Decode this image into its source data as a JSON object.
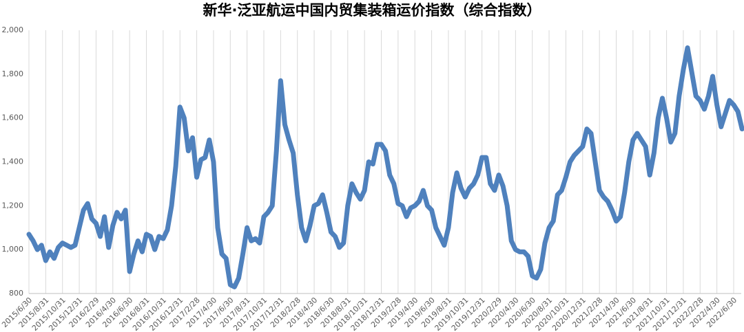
{
  "chart_data": {
    "type": "line",
    "title": "新华·泛亚航运中国内贸集装箱运价指数（综合指数）",
    "color": "#4f81bd",
    "grid": true,
    "ylim": [
      800,
      2000
    ],
    "yticks": [
      800,
      {
        "value": 1000,
        "label": "1,000"
      },
      {
        "value": 1200,
        "label": "1,200"
      },
      {
        "value": 1400,
        "label": "1,400"
      },
      {
        "value": 1600,
        "label": "1,600"
      },
      {
        "value": 1800,
        "label": "1,800"
      },
      {
        "value": 2000,
        "label": "2,000"
      }
    ],
    "categories": [
      "2015/6/30",
      null,
      null,
      null,
      "2015/8/31",
      null,
      null,
      null,
      "2015/10/31",
      null,
      null,
      null,
      "2015/12/31",
      null,
      null,
      null,
      "2016/2/29",
      null,
      null,
      null,
      "2016/4/30",
      null,
      null,
      null,
      "2016/6/30",
      null,
      null,
      null,
      "2016/8/31",
      null,
      null,
      null,
      "2016/10/31",
      null,
      null,
      null,
      "2016/12/31",
      null,
      null,
      null,
      "2017/2/28",
      null,
      null,
      null,
      "2017/4/30",
      null,
      null,
      null,
      "2017/6/30",
      null,
      null,
      null,
      "2017/8/31",
      null,
      null,
      null,
      "2017/10/31",
      null,
      null,
      null,
      "2017/12/31",
      null,
      null,
      null,
      "2018/2/28",
      null,
      null,
      null,
      "2018/4/30",
      null,
      null,
      null,
      "2018/6/30",
      null,
      null,
      null,
      "2018/8/31",
      null,
      null,
      null,
      "2018/10/31",
      null,
      null,
      null,
      "2018/12/31",
      null,
      null,
      null,
      "2019/2/28",
      null,
      null,
      null,
      "2019/4/30",
      null,
      null,
      null,
      "2019/6/30",
      null,
      null,
      null,
      "2019/8/31",
      null,
      null,
      null,
      "2019/10/31",
      null,
      null,
      null,
      "2019/12/31",
      null,
      null,
      null,
      "2020/2/29",
      null,
      null,
      null,
      "2020/4/30",
      null,
      null,
      null,
      "2020/6/30",
      null,
      null,
      null,
      "2020/8/31",
      null,
      null,
      null,
      "2020/10/31",
      null,
      null,
      null,
      "2020/12/31",
      null,
      null,
      null,
      "2021/2/28",
      null,
      null,
      null,
      "2021/4/30",
      null,
      null,
      null,
      "2021/6/30",
      null,
      null,
      null,
      "2021/8/31",
      null,
      null,
      null,
      "2021/10/31",
      null,
      null,
      null,
      "2021/12/31",
      null,
      null,
      null,
      "2022/2/28",
      null,
      null,
      null,
      "2022/4/30",
      null,
      null,
      null,
      "2022/6/30",
      null,
      null
    ],
    "values": [
      1070,
      1040,
      1000,
      1020,
      950,
      990,
      960,
      1010,
      1030,
      1020,
      1010,
      1020,
      1100,
      1180,
      1210,
      1140,
      1120,
      1060,
      1150,
      1010,
      1110,
      1170,
      1140,
      1180,
      900,
      980,
      1040,
      990,
      1070,
      1060,
      1000,
      1060,
      1050,
      1090,
      1200,
      1380,
      1650,
      1600,
      1450,
      1510,
      1330,
      1410,
      1420,
      1500,
      1400,
      1100,
      980,
      960,
      840,
      830,
      870,
      980,
      1100,
      1040,
      1050,
      1030,
      1150,
      1170,
      1200,
      1450,
      1770,
      1570,
      1500,
      1440,
      1250,
      1100,
      1040,
      1110,
      1200,
      1210,
      1250,
      1170,
      1080,
      1060,
      1010,
      1030,
      1200,
      1300,
      1260,
      1230,
      1270,
      1400,
      1390,
      1480,
      1480,
      1450,
      1340,
      1300,
      1210,
      1200,
      1150,
      1190,
      1200,
      1220,
      1270,
      1200,
      1180,
      1100,
      1060,
      1020,
      1100,
      1260,
      1350,
      1280,
      1240,
      1280,
      1300,
      1340,
      1420,
      1420,
      1300,
      1270,
      1340,
      1290,
      1200,
      1040,
      1000,
      990,
      990,
      970,
      880,
      870,
      910,
      1030,
      1100,
      1130,
      1250,
      1270,
      1330,
      1400,
      1430,
      1450,
      1470,
      1550,
      1530,
      1400,
      1270,
      1240,
      1220,
      1180,
      1130,
      1150,
      1260,
      1400,
      1500,
      1530,
      1500,
      1470,
      1340,
      1440,
      1600,
      1690,
      1600,
      1490,
      1530,
      1700,
      1820,
      1920,
      1810,
      1700,
      1680,
      1640,
      1700,
      1790,
      1660,
      1560,
      1620,
      1680,
      1660,
      1630,
      1550
    ]
  }
}
